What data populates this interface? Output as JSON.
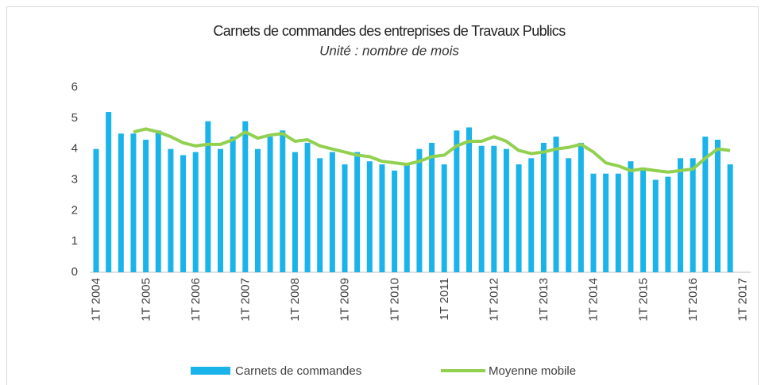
{
  "chart_data": {
    "type": "bar+line",
    "title": "Carnets de commandes des entreprises de Travaux Publics",
    "subtitle": "Unité :  nombre de mois",
    "categories": [
      "1T 2004",
      null,
      null,
      null,
      "1T 2005",
      null,
      null,
      null,
      "1T 2006",
      null,
      null,
      null,
      "1T 2007",
      null,
      null,
      null,
      "1T 2008",
      null,
      null,
      null,
      "1T 2009",
      null,
      null,
      null,
      "1T 2010",
      null,
      null,
      null,
      "1T 2011",
      null,
      null,
      null,
      "1T 2012",
      null,
      null,
      null,
      "1T 2013",
      null,
      null,
      null,
      "1T 2014",
      null,
      null,
      null,
      "1T 2015",
      null,
      null,
      null,
      "1T 2016",
      null,
      null,
      null,
      "1T 2017"
    ],
    "series": [
      {
        "name": "Carnets de commandes",
        "type": "bar",
        "color": "#1ab3ea",
        "values": [
          4.0,
          5.2,
          4.5,
          4.5,
          4.3,
          4.6,
          4.0,
          3.8,
          3.9,
          4.9,
          4.0,
          4.4,
          4.9,
          4.0,
          4.4,
          4.6,
          3.9,
          4.2,
          3.7,
          3.9,
          3.5,
          3.9,
          3.6,
          3.5,
          3.3,
          3.5,
          4.0,
          4.2,
          3.5,
          4.6,
          4.7,
          4.1,
          4.1,
          4.0,
          3.5,
          3.7,
          4.2,
          4.4,
          3.7,
          4.2,
          3.2,
          3.2,
          3.2,
          3.6,
          3.4,
          3.0,
          3.1,
          3.7,
          3.7,
          4.4,
          4.3,
          3.5,
          null
        ]
      },
      {
        "name": "Moyenne mobile",
        "type": "line",
        "color": "#92d050",
        "values": [
          null,
          null,
          null,
          4.55,
          4.65,
          4.55,
          4.4,
          4.2,
          4.1,
          4.15,
          4.15,
          4.3,
          4.55,
          4.35,
          4.45,
          4.5,
          4.25,
          4.3,
          4.1,
          4.0,
          3.9,
          3.8,
          3.75,
          3.6,
          3.55,
          3.5,
          3.6,
          3.75,
          3.8,
          4.1,
          4.25,
          4.25,
          4.4,
          4.25,
          3.95,
          3.85,
          3.9,
          4.0,
          4.05,
          4.15,
          3.9,
          3.55,
          3.45,
          3.3,
          3.35,
          3.3,
          3.25,
          3.3,
          3.35,
          3.7,
          4.0,
          3.95,
          null
        ]
      }
    ],
    "ylim": [
      0,
      6
    ],
    "yticks": [
      0,
      1,
      2,
      3,
      4,
      5,
      6
    ],
    "grid": false,
    "legend": "bottom"
  }
}
